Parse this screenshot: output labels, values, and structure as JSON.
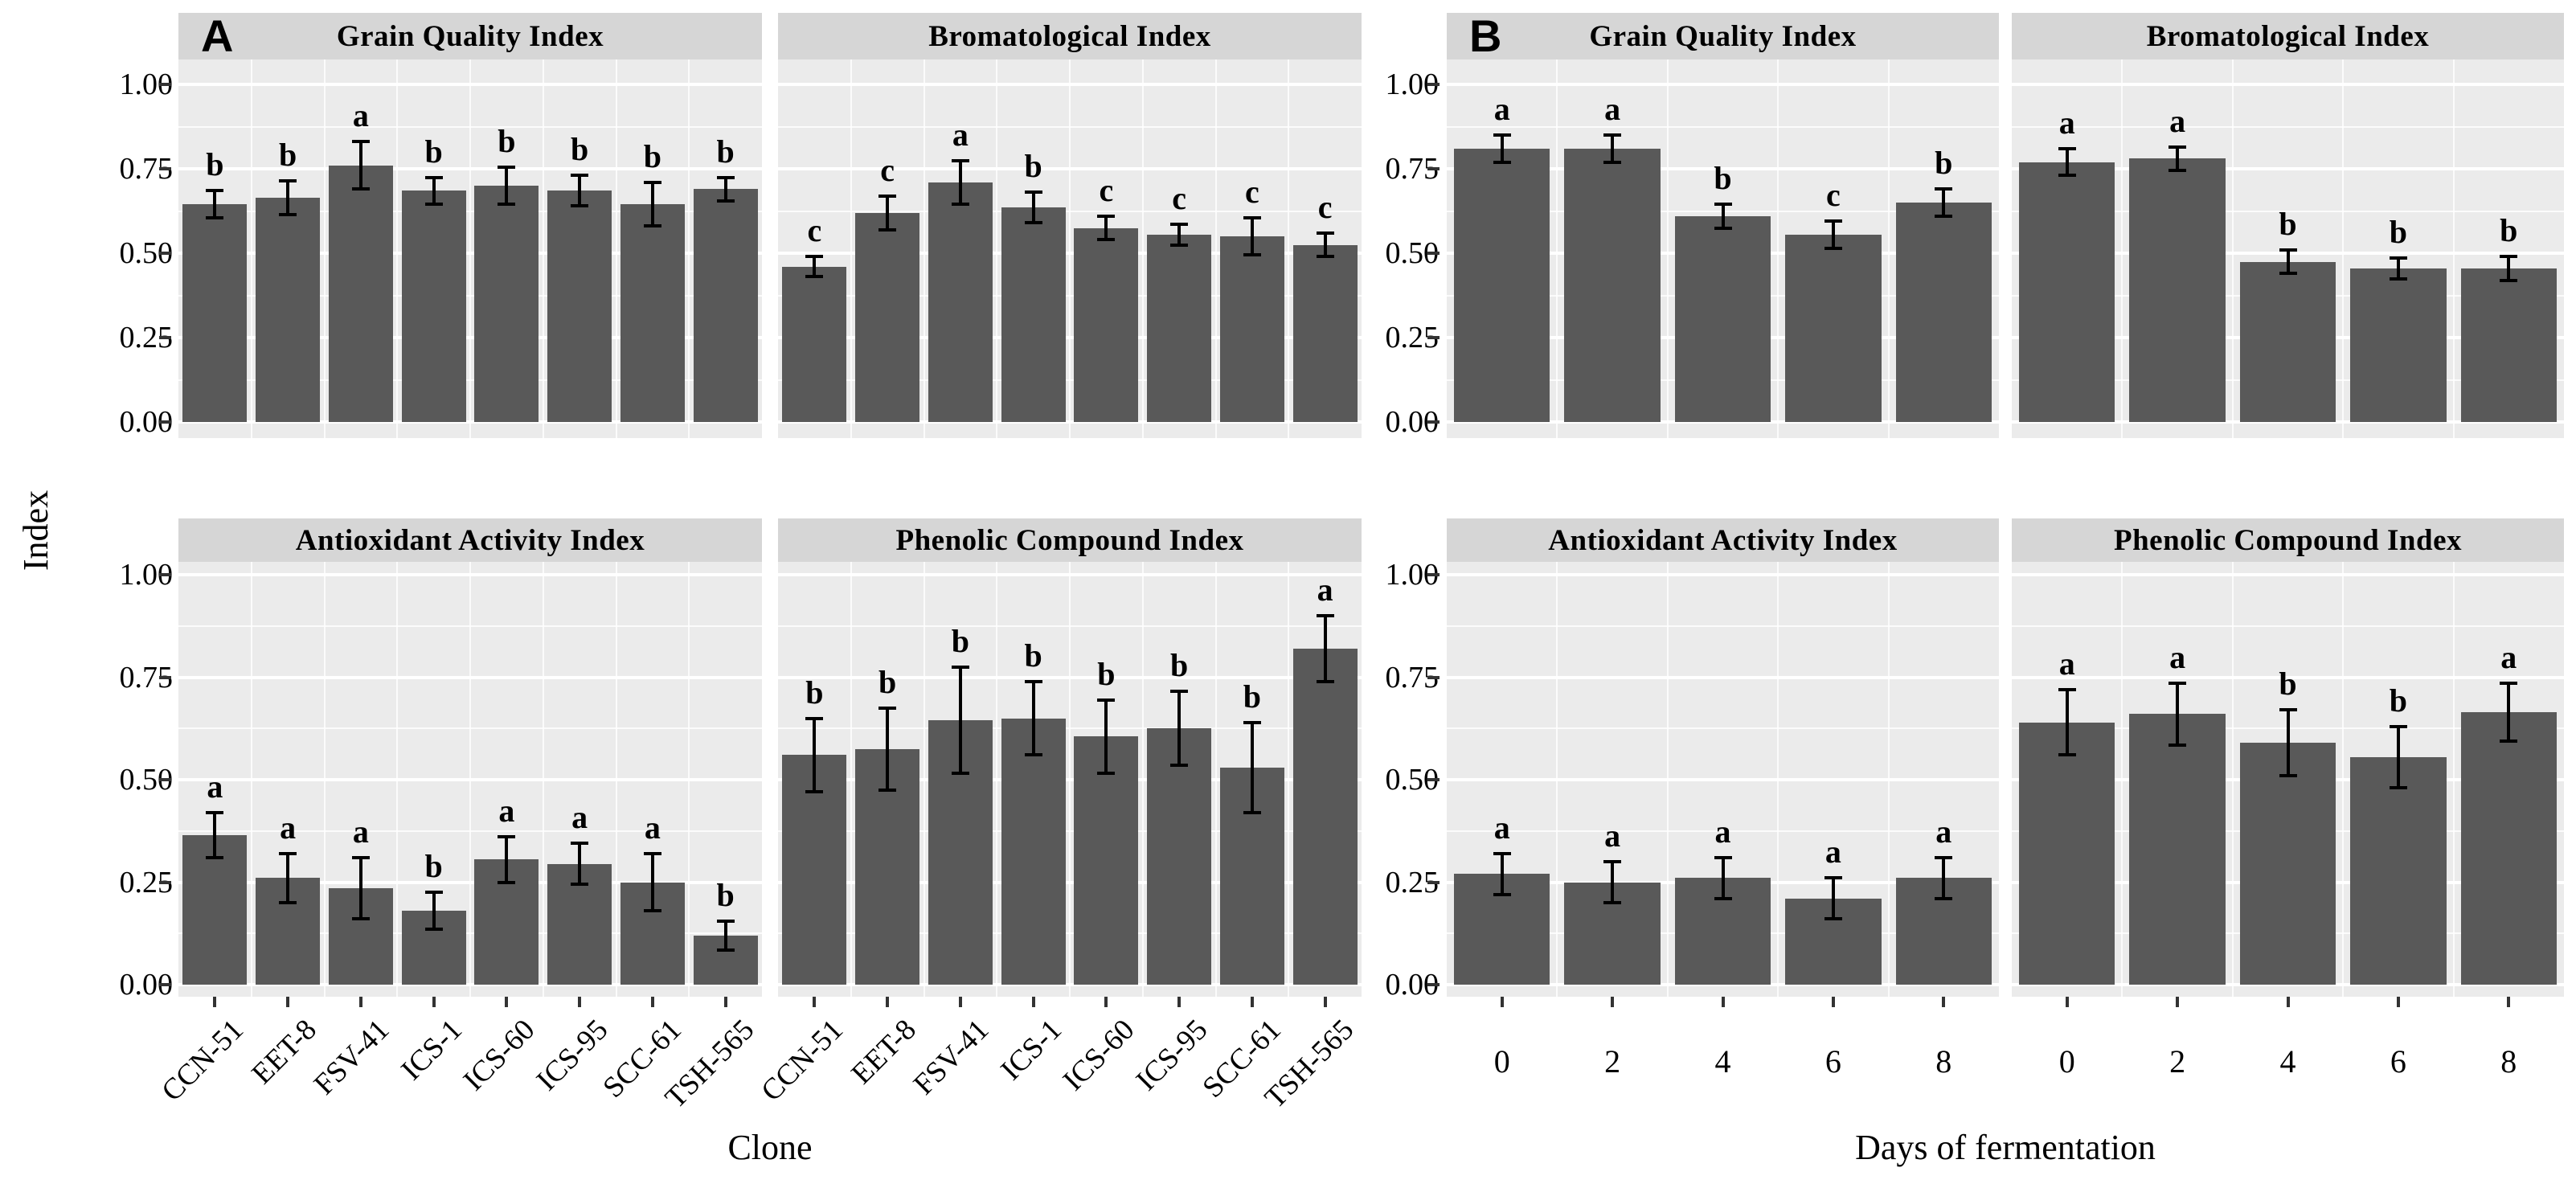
{
  "colors": {
    "bar": "#595959",
    "panel_background": "#ebebeb",
    "strip_background": "#d6d6d6",
    "gridline": "#ffffff",
    "figure_background": "#ffffff",
    "text": "#000000"
  },
  "chart_data": [
    {
      "type": "bar",
      "panel_label": "A",
      "xlabel": "Clone",
      "ylabel": "Index",
      "ylim": [
        0,
        1
      ],
      "grid": true,
      "yticks": [
        "1.00",
        "0.75",
        "0.50",
        "0.25",
        "0.00"
      ],
      "x_tick_rotation_deg": 45,
      "categories": [
        "CCN-51",
        "EET-8",
        "FSV-41",
        "ICS-1",
        "ICS-60",
        "ICS-95",
        "SCC-61",
        "TSH-565"
      ],
      "facets": [
        {
          "title": "Grain Quality Index",
          "values": [
            0.645,
            0.665,
            0.76,
            0.685,
            0.7,
            0.685,
            0.645,
            0.69
          ],
          "errors": [
            0.04,
            0.05,
            0.07,
            0.04,
            0.055,
            0.045,
            0.065,
            0.035
          ],
          "letters": [
            "b",
            "b",
            "a",
            "b",
            "b",
            "b",
            "b",
            "b"
          ]
        },
        {
          "title": "Bromatological Index",
          "values": [
            0.46,
            0.62,
            0.71,
            0.635,
            0.575,
            0.555,
            0.55,
            0.525
          ],
          "errors": [
            0.03,
            0.05,
            0.065,
            0.045,
            0.035,
            0.03,
            0.055,
            0.035
          ],
          "letters": [
            "c",
            "c",
            "a",
            "b",
            "c",
            "c",
            "c",
            "c"
          ]
        },
        {
          "title": "Antioxidant Activity Index",
          "values": [
            0.365,
            0.26,
            0.235,
            0.18,
            0.305,
            0.295,
            0.25,
            0.12
          ],
          "errors": [
            0.055,
            0.06,
            0.075,
            0.045,
            0.055,
            0.05,
            0.07,
            0.035
          ],
          "letters": [
            "a",
            "a",
            "a",
            "b",
            "a",
            "a",
            "a",
            "b"
          ]
        },
        {
          "title": "Phenolic Compound Index",
          "values": [
            0.56,
            0.575,
            0.645,
            0.65,
            0.605,
            0.625,
            0.53,
            0.82
          ],
          "errors": [
            0.09,
            0.1,
            0.13,
            0.09,
            0.09,
            0.09,
            0.11,
            0.08
          ],
          "letters": [
            "b",
            "b",
            "b",
            "b",
            "b",
            "b",
            "b",
            "a"
          ]
        }
      ]
    },
    {
      "type": "bar",
      "panel_label": "B",
      "xlabel": "Days of fermentation",
      "ylabel": "Index",
      "ylim": [
        0,
        1
      ],
      "grid": true,
      "yticks": [
        "1.00",
        "0.75",
        "0.50",
        "0.25",
        "0.00"
      ],
      "x_tick_rotation_deg": 0,
      "categories": [
        "0",
        "2",
        "4",
        "6",
        "8"
      ],
      "facets": [
        {
          "title": "Grain Quality Index",
          "values": [
            0.81,
            0.81,
            0.61,
            0.555,
            0.65
          ],
          "errors": [
            0.04,
            0.04,
            0.035,
            0.04,
            0.04
          ],
          "letters": [
            "a",
            "a",
            "b",
            "c",
            "b"
          ]
        },
        {
          "title": "Bromatological Index",
          "values": [
            0.77,
            0.78,
            0.475,
            0.455,
            0.455
          ],
          "errors": [
            0.04,
            0.035,
            0.035,
            0.03,
            0.035
          ],
          "letters": [
            "a",
            "a",
            "b",
            "b",
            "b"
          ]
        },
        {
          "title": "Antioxidant Activity Index",
          "values": [
            0.27,
            0.25,
            0.26,
            0.21,
            0.26
          ],
          "errors": [
            0.05,
            0.05,
            0.05,
            0.05,
            0.05
          ],
          "letters": [
            "a",
            "a",
            "a",
            "a",
            "a"
          ]
        },
        {
          "title": "Phenolic Compound Index",
          "values": [
            0.64,
            0.66,
            0.59,
            0.555,
            0.665
          ],
          "errors": [
            0.08,
            0.075,
            0.08,
            0.075,
            0.07
          ],
          "letters": [
            "a",
            "a",
            "b",
            "b",
            "a"
          ]
        }
      ]
    }
  ]
}
